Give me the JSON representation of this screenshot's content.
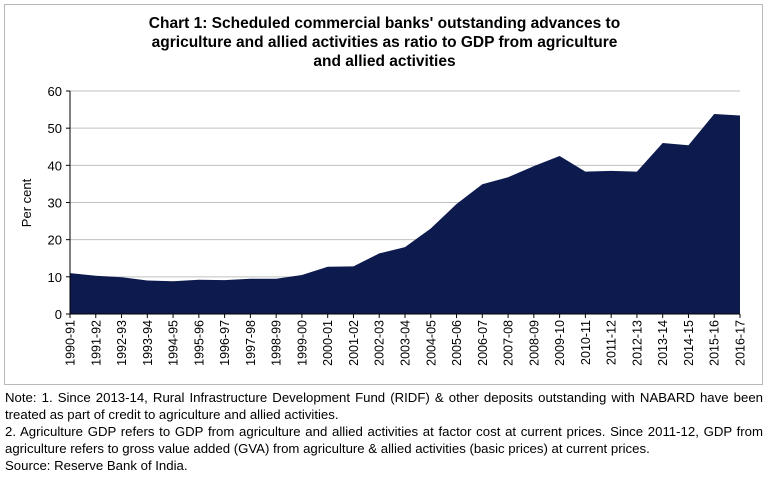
{
  "chart_data": {
    "type": "area",
    "title_lines": [
      "Chart 1: Scheduled commercial banks' outstanding advances to",
      "agriculture and allied activities as ratio to GDP from agriculture",
      "and allied activities"
    ],
    "ylabel": "Per cent",
    "xlabel": "",
    "ylim": [
      0,
      60
    ],
    "yticks": [
      "0",
      "10",
      "20",
      "30",
      "40",
      "50",
      "60"
    ],
    "grid": true,
    "legend": "none",
    "fill_color": "#0c1a4e",
    "grid_color": "#c0c0c0",
    "categories": [
      "1990-91",
      "1991-92",
      "1992-93",
      "1993-94",
      "1994-95",
      "1995-96",
      "1996-97",
      "1997-98",
      "1998-99",
      "1999-00",
      "2000-01",
      "2001-02",
      "2002-03",
      "2003-04",
      "2004-05",
      "2005-06",
      "2006-07",
      "2007-08",
      "2008-09",
      "2009-10",
      "2010-11",
      "2011-12",
      "2012-13",
      "2013-14",
      "2014-15",
      "2015-16",
      "2016-17"
    ],
    "values": [
      11.0,
      10.3,
      9.9,
      9.0,
      8.8,
      9.2,
      9.1,
      9.5,
      9.5,
      10.5,
      12.7,
      12.8,
      16.3,
      18.0,
      23.0,
      29.6,
      34.9,
      36.8,
      39.8,
      42.5,
      38.3,
      38.5,
      38.3,
      46.0,
      45.4,
      53.8,
      53.4
    ]
  },
  "notes": [
    "Note: 1. Since 2013-14, Rural Infrastructure Development Fund (RIDF) & other deposits outstanding with NABARD have been treated as part of credit to agriculture and allied activities.",
    "2. Agriculture GDP refers to GDP from agriculture and allied activities at factor cost at current prices. Since 2011-12, GDP from agriculture refers to gross value added (GVA) from agriculture & allied activities (basic prices) at current prices.",
    "Source: Reserve Bank of India."
  ]
}
